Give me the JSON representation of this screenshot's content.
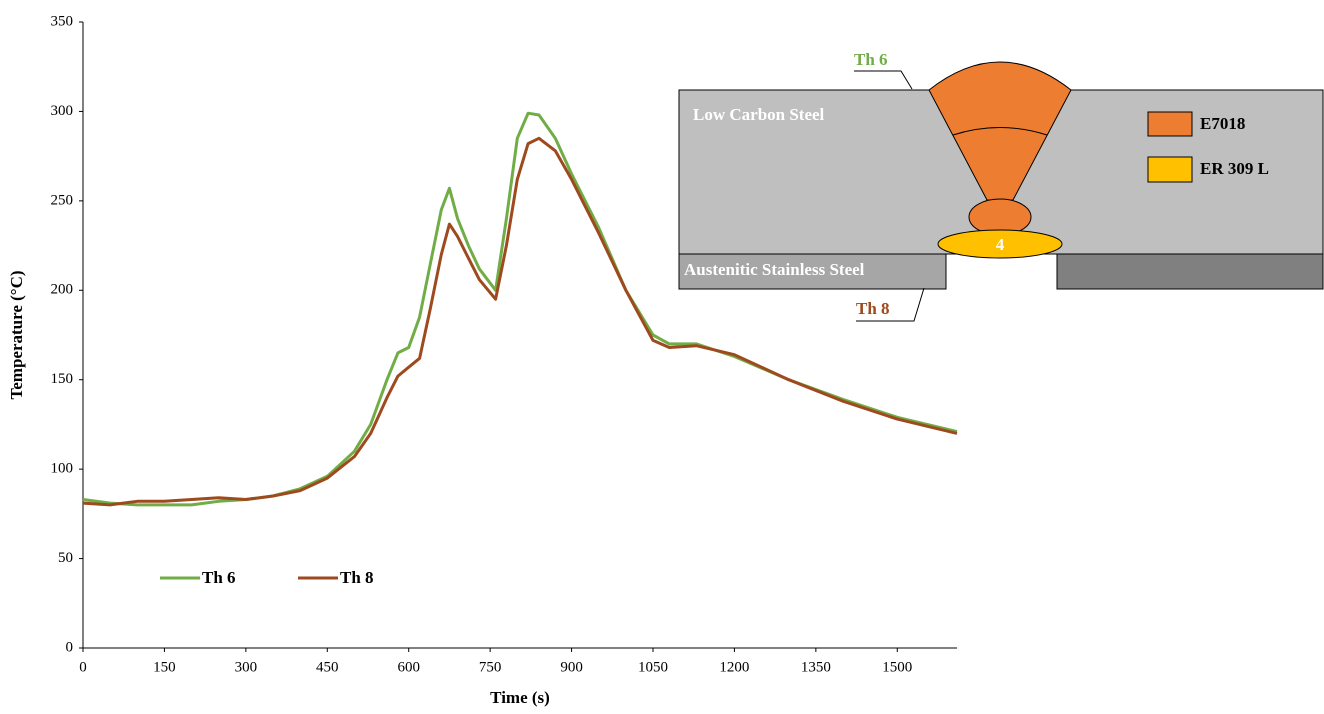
{
  "chart_data": {
    "type": "line",
    "x_label": "Time (s)",
    "y_label": "Temperature (°C)",
    "x": [
      0,
      50,
      100,
      150,
      200,
      250,
      300,
      350,
      400,
      450,
      500,
      530,
      560,
      580,
      600,
      620,
      640,
      660,
      675,
      690,
      710,
      730,
      760,
      780,
      800,
      820,
      840,
      870,
      900,
      950,
      1000,
      1050,
      1080,
      1130,
      1200,
      1300,
      1400,
      1500,
      1610
    ],
    "series": [
      {
        "name": "Th 6",
        "color": "#70ad47",
        "values": [
          83,
          81,
          80,
          80,
          80,
          82,
          83,
          85,
          89,
          96,
          110,
          125,
          150,
          165,
          168,
          185,
          215,
          245,
          257,
          240,
          225,
          212,
          200,
          240,
          285,
          299,
          298,
          285,
          265,
          235,
          200,
          175,
          170,
          170,
          163,
          150,
          139,
          129,
          121
        ]
      },
      {
        "name": "Th 8",
        "color": "#9e4a1e",
        "values": [
          81,
          80,
          82,
          82,
          83,
          84,
          83,
          85,
          88,
          95,
          107,
          120,
          140,
          152,
          157,
          162,
          190,
          220,
          237,
          230,
          218,
          206,
          195,
          225,
          262,
          282,
          285,
          278,
          262,
          232,
          200,
          172,
          168,
          169,
          164,
          150,
          138,
          128,
          120
        ]
      }
    ],
    "xlim": [
      0,
      1610
    ],
    "xticks": [
      0,
      150,
      300,
      450,
      600,
      750,
      900,
      1050,
      1200,
      1350,
      1500
    ],
    "ylim": [
      0,
      350
    ],
    "yticks": [
      0,
      50,
      100,
      150,
      200,
      250,
      300,
      350
    ],
    "grid": false,
    "legend": "lower left"
  },
  "inset": {
    "th6": "Th 6",
    "th8": "Th 8",
    "top_plate": "Low Carbon Steel",
    "bottom_plate": "Austenitic Stainless Steel",
    "root_pass": "4",
    "legend": [
      "E7018",
      "ER 309 L"
    ]
  }
}
